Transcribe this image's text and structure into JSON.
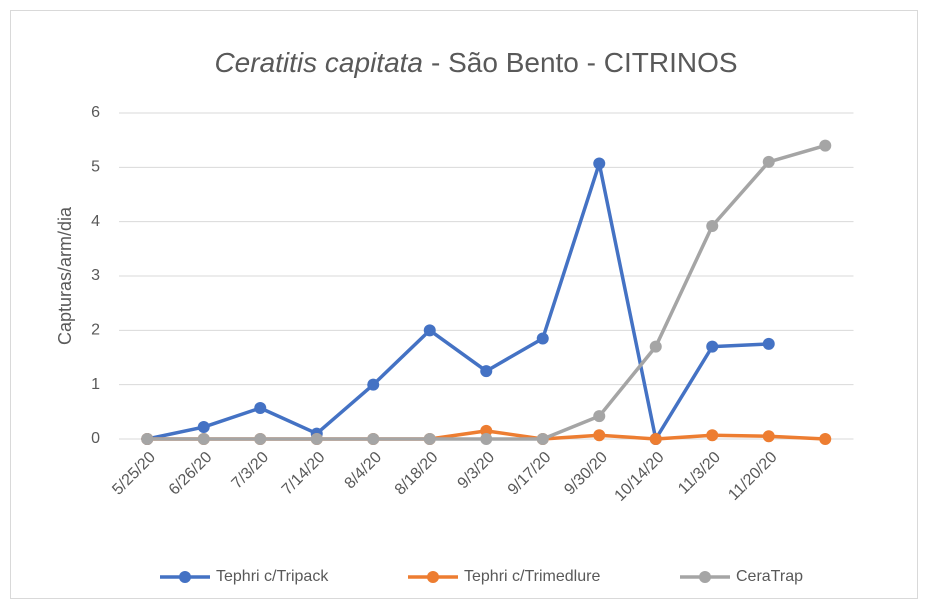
{
  "chart_data": {
    "type": "line",
    "title": {
      "italic": "Ceratitis capitata",
      "text": "- São Bento - CITRINOS"
    },
    "y_label": "Capturas/arm/dia",
    "categories": [
      "5/25/20",
      "6/26/20",
      "7/3/20",
      "7/14/20",
      "8/4/20",
      "8/18/20",
      "9/3/20",
      "9/17/20",
      "9/30/20",
      "10/14/20",
      "11/3/20",
      "11/20/20",
      null
    ],
    "series": [
      {
        "name": "Tephri c/Tripack",
        "color": "#4472c4",
        "values": [
          0,
          0.22,
          0.57,
          0.1,
          1.0,
          2.0,
          1.25,
          1.85,
          5.07,
          0,
          1.7,
          1.75,
          null
        ]
      },
      {
        "name": "Tephri c/Trimedlure",
        "color": "#ed7d31",
        "values": [
          0,
          0,
          0,
          0,
          0,
          0,
          0.15,
          0,
          0.07,
          0,
          0.07,
          0.05,
          0
        ]
      },
      {
        "name": "CeraTrap",
        "color": "#a5a5a5",
        "values": [
          0,
          0,
          0,
          0,
          0,
          0,
          0,
          0,
          0.42,
          1.7,
          3.92,
          5.1,
          5.4
        ]
      }
    ],
    "ylim": [
      0,
      6
    ],
    "yticks": [
      0,
      1,
      2,
      3,
      4,
      5,
      6
    ],
    "grid": true,
    "legend": "bottom"
  }
}
